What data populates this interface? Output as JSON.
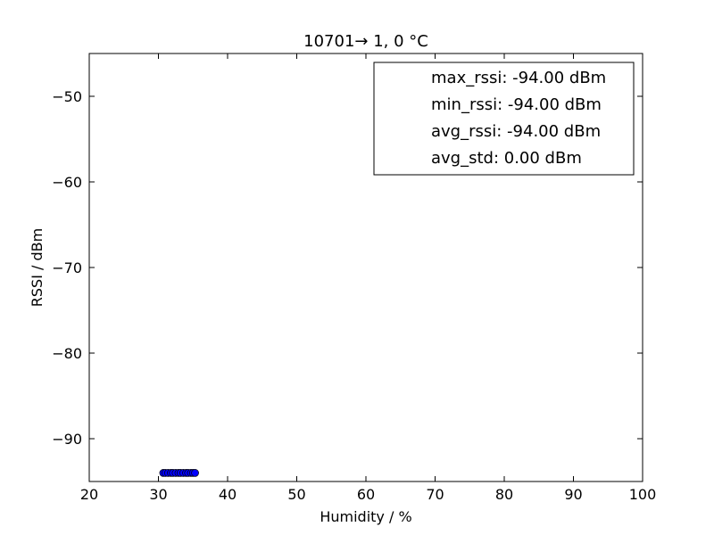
{
  "chart_data": {
    "type": "scatter",
    "title": "10701→ 1, 0 °C",
    "xlabel": "Humidity / %",
    "ylabel": "RSSI / dBm",
    "xlim": [
      20,
      100
    ],
    "ylim": [
      -95,
      -45
    ],
    "x_ticks": [
      20,
      30,
      40,
      50,
      60,
      70,
      80,
      90,
      100
    ],
    "y_ticks": [
      -90,
      -80,
      -70,
      -60,
      -50
    ],
    "grid": false,
    "legend_position": "upper right",
    "legend": [
      "max_rssi: -94.00 dBm",
      "min_rssi: -94.00 dBm",
      "avg_rssi: -94.00 dBm",
      "avg_std: 0.00 dBm"
    ],
    "marker_color": "#0000ff",
    "series": [
      {
        "x": [
          30.7,
          31.0,
          31.4,
          31.8,
          32.1,
          32.5,
          32.9,
          33.2,
          33.6,
          34.0,
          34.3,
          34.7,
          35.0,
          35.3
        ],
        "y": [
          -94,
          -94,
          -94,
          -94,
          -94,
          -94,
          -94,
          -94,
          -94,
          -94,
          -94,
          -94,
          -94,
          -94
        ]
      }
    ]
  }
}
